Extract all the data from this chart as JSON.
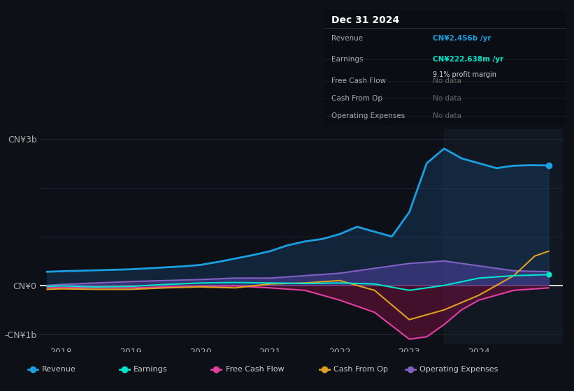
{
  "bg_color": "#0d1117",
  "plot_bg_color": "#0d1117",
  "title": "Dec 31 2024",
  "ylim": [
    -1200000000.0,
    3200000000.0
  ],
  "yticks": [
    -1000000000.0,
    0,
    1000000000.0,
    2000000000.0,
    3000000000.0
  ],
  "ytick_labels": [
    "-CN¥1b",
    "CN¥0",
    "",
    "",
    "CN¥3b"
  ],
  "xlim": [
    2017.7,
    2025.2
  ],
  "xticks": [
    2018,
    2019,
    2020,
    2021,
    2022,
    2023,
    2024
  ],
  "revenue_color": "#1a9fe0",
  "revenue_fill": "#1a4a7a",
  "earnings_color": "#00e5cc",
  "free_cash_color": "#e040a0",
  "cash_from_op_color": "#e0a020",
  "op_exp_color": "#8060c0",
  "op_exp_fill": "#5040a0",
  "free_cash_fill": "#7a1040",
  "legend_labels": [
    "Revenue",
    "Earnings",
    "Free Cash Flow",
    "Cash From Op",
    "Operating Expenses"
  ],
  "legend_colors": [
    "#1a9fe0",
    "#00e5cc",
    "#e040a0",
    "#e0a020",
    "#8060c0"
  ],
  "revenue_x": [
    2017.8,
    2018.0,
    2018.25,
    2018.5,
    2018.75,
    2019.0,
    2019.25,
    2019.5,
    2019.75,
    2020.0,
    2020.25,
    2020.5,
    2020.75,
    2021.0,
    2021.25,
    2021.5,
    2021.75,
    2022.0,
    2022.25,
    2022.5,
    2022.75,
    2023.0,
    2023.25,
    2023.5,
    2023.75,
    2024.0,
    2024.25,
    2024.5,
    2024.75,
    2025.0
  ],
  "revenue_y": [
    280000000.0,
    290000000.0,
    300000000.0,
    310000000.0,
    320000000.0,
    330000000.0,
    350000000.0,
    370000000.0,
    390000000.0,
    420000000.0,
    480000000.0,
    550000000.0,
    620000000.0,
    700000000.0,
    820000000.0,
    900000000.0,
    950000000.0,
    1050000000.0,
    1200000000.0,
    1100000000.0,
    1000000000.0,
    1500000000.0,
    2500000000.0,
    2800000000.0,
    2600000000.0,
    2500000000.0,
    2400000000.0,
    2450000000.0,
    2460000000.0,
    2456000000.0
  ],
  "earnings_x": [
    2017.8,
    2018.0,
    2018.5,
    2019.0,
    2019.5,
    2020.0,
    2020.5,
    2021.0,
    2021.5,
    2022.0,
    2022.5,
    2023.0,
    2023.5,
    2024.0,
    2024.5,
    2025.0
  ],
  "earnings_y": [
    -20000000.0,
    -10000000.0,
    -30000000.0,
    -20000000.0,
    20000000.0,
    50000000.0,
    60000000.0,
    50000000.0,
    40000000.0,
    50000000.0,
    30000000.0,
    -100000000.0,
    0,
    150000000.0,
    200000000.0,
    220000000.0
  ],
  "free_cash_x": [
    2017.8,
    2018.0,
    2018.5,
    2019.0,
    2019.5,
    2020.0,
    2020.5,
    2021.0,
    2021.5,
    2022.0,
    2022.5,
    2023.0,
    2023.25,
    2023.5,
    2023.75,
    2024.0,
    2024.5,
    2025.0
  ],
  "free_cash_y": [
    -50000000.0,
    -40000000.0,
    -50000000.0,
    -50000000.0,
    -30000000.0,
    -20000000.0,
    -10000000.0,
    -50000000.0,
    -100000000.0,
    -300000000.0,
    -550000000.0,
    -1100000000.0,
    -1050000000.0,
    -800000000.0,
    -500000000.0,
    -300000000.0,
    -100000000.0,
    -50000000.0
  ],
  "cash_from_op_x": [
    2017.8,
    2018.0,
    2018.5,
    2019.0,
    2019.5,
    2020.0,
    2020.5,
    2021.0,
    2021.5,
    2022.0,
    2022.5,
    2023.0,
    2023.5,
    2024.0,
    2024.5,
    2024.8,
    2025.0
  ],
  "cash_from_op_y": [
    -80000000.0,
    -70000000.0,
    -80000000.0,
    -80000000.0,
    -50000000.0,
    -30000000.0,
    -50000000.0,
    30000000.0,
    50000000.0,
    100000000.0,
    -100000000.0,
    -700000000.0,
    -500000000.0,
    -200000000.0,
    200000000.0,
    600000000.0,
    700000000.0
  ],
  "op_exp_x": [
    2017.8,
    2018.0,
    2018.5,
    2019.0,
    2019.5,
    2020.0,
    2020.5,
    2021.0,
    2021.5,
    2022.0,
    2022.5,
    2023.0,
    2023.5,
    2024.0,
    2024.5,
    2025.0
  ],
  "op_exp_y": [
    0,
    20000000.0,
    50000000.0,
    80000000.0,
    100000000.0,
    120000000.0,
    150000000.0,
    150000000.0,
    200000000.0,
    250000000.0,
    350000000.0,
    450000000.0,
    500000000.0,
    400000000.0,
    300000000.0,
    280000000.0
  ],
  "table_rows": [
    {
      "label": "Revenue",
      "value": "CN¥2.456b /yr",
      "val_color": "#1a9fe0",
      "sub": null
    },
    {
      "label": "Earnings",
      "value": "CN¥222.638m /yr",
      "val_color": "#00e5cc",
      "sub": "9.1% profit margin"
    },
    {
      "label": "Free Cash Flow",
      "value": "No data",
      "val_color": "#666666",
      "sub": null
    },
    {
      "label": "Cash From Op",
      "value": "No data",
      "val_color": "#666666",
      "sub": null
    },
    {
      "label": "Operating Expenses",
      "value": "No data",
      "val_color": "#666666",
      "sub": null
    }
  ]
}
